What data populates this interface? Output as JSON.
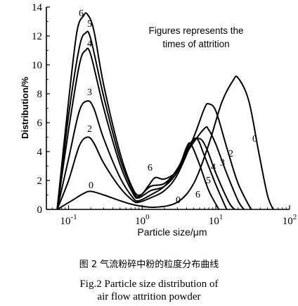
{
  "chart_data": {
    "type": "line",
    "xlabel": "Particle size/μm",
    "ylabel": "Distribution/%",
    "xscale": "log",
    "xlim": [
      0.05,
      100
    ],
    "ylim": [
      0,
      14
    ],
    "x_ticks": [
      "10-1",
      "100",
      "101",
      "102"
    ],
    "y_ticks": [
      "0",
      "2",
      "4",
      "6",
      "8",
      "10",
      "12",
      "14"
    ],
    "annotation": [
      "Figures represents the",
      "times of attrition"
    ],
    "series": [
      {
        "name": "0",
        "points": [
          [
            0.07,
            0
          ],
          [
            0.11,
            0.6
          ],
          [
            0.16,
            1.1
          ],
          [
            0.2,
            1.25
          ],
          [
            0.3,
            1.0
          ],
          [
            0.5,
            0.6
          ],
          [
            0.8,
            0.3
          ],
          [
            1.5,
            0.15
          ],
          [
            3,
            0.5
          ],
          [
            5,
            1.8
          ],
          [
            8,
            4.5
          ],
          [
            12,
            7.4
          ],
          [
            17,
            8.9
          ],
          [
            20,
            9.1
          ],
          [
            28,
            7.5
          ],
          [
            38,
            4.0
          ],
          [
            50,
            1.0
          ],
          [
            60,
            0
          ]
        ]
      },
      {
        "name": "2",
        "points": [
          [
            0.07,
            0
          ],
          [
            0.1,
            2.0
          ],
          [
            0.14,
            4.4
          ],
          [
            0.18,
            5.0
          ],
          [
            0.22,
            4.6
          ],
          [
            0.3,
            3.2
          ],
          [
            0.5,
            1.5
          ],
          [
            0.75,
            0.6
          ],
          [
            0.9,
            0.5
          ],
          [
            1.3,
            0.8
          ],
          [
            2,
            1.3
          ],
          [
            3,
            2.4
          ],
          [
            5,
            5.0
          ],
          [
            7,
            7.0
          ],
          [
            8,
            7.3
          ],
          [
            10,
            6.8
          ],
          [
            14,
            4.3
          ],
          [
            20,
            1.8
          ],
          [
            30,
            0
          ]
        ]
      },
      {
        "name": "3",
        "points": [
          [
            0.07,
            0
          ],
          [
            0.1,
            3.5
          ],
          [
            0.14,
            6.8
          ],
          [
            0.18,
            7.5
          ],
          [
            0.22,
            7.0
          ],
          [
            0.3,
            4.9
          ],
          [
            0.5,
            2.2
          ],
          [
            0.75,
            0.8
          ],
          [
            0.9,
            0.6
          ],
          [
            1.3,
            1.0
          ],
          [
            2,
            1.6
          ],
          [
            3,
            2.8
          ],
          [
            4.5,
            4.3
          ],
          [
            7,
            5.6
          ],
          [
            8,
            5.5
          ],
          [
            10,
            4.5
          ],
          [
            14,
            2.5
          ],
          [
            20,
            0.6
          ],
          [
            24,
            0
          ]
        ]
      },
      {
        "name": "4",
        "points": [
          [
            0.07,
            0
          ],
          [
            0.1,
            5.5
          ],
          [
            0.14,
            10.0
          ],
          [
            0.17,
            11.0
          ],
          [
            0.2,
            10.7
          ],
          [
            0.3,
            7.0
          ],
          [
            0.5,
            3.1
          ],
          [
            0.75,
            1.1
          ],
          [
            0.9,
            0.8
          ],
          [
            1.3,
            1.3
          ],
          [
            2,
            1.6
          ],
          [
            3,
            2.6
          ],
          [
            4.5,
            4.5
          ],
          [
            6,
            4.9
          ],
          [
            7.5,
            4.2
          ],
          [
            10,
            2.5
          ],
          [
            15,
            0.5
          ],
          [
            18,
            0
          ]
        ]
      },
      {
        "name": "5",
        "points": [
          [
            0.07,
            0
          ],
          [
            0.1,
            6.5
          ],
          [
            0.14,
            11.2
          ],
          [
            0.17,
            12.2
          ],
          [
            0.2,
            11.8
          ],
          [
            0.3,
            7.8
          ],
          [
            0.5,
            3.5
          ],
          [
            0.75,
            1.3
          ],
          [
            0.9,
            0.9
          ],
          [
            1.3,
            1.6
          ],
          [
            2,
            1.8
          ],
          [
            3,
            2.8
          ],
          [
            4.3,
            4.4
          ],
          [
            5.5,
            4.9
          ],
          [
            7,
            3.7
          ],
          [
            10,
            1.7
          ],
          [
            14,
            0
          ]
        ]
      },
      {
        "name": "6",
        "points": [
          [
            0.07,
            0
          ],
          [
            0.1,
            7.5
          ],
          [
            0.13,
            12.3
          ],
          [
            0.16,
            13.4
          ],
          [
            0.18,
            13.5
          ],
          [
            0.22,
            12.4
          ],
          [
            0.3,
            8.6
          ],
          [
            0.5,
            3.9
          ],
          [
            0.75,
            1.4
          ],
          [
            0.95,
            1.0
          ],
          [
            1.2,
            1.6
          ],
          [
            1.5,
            2.2
          ],
          [
            2,
            2.1
          ],
          [
            3,
            2.7
          ],
          [
            4,
            4.3
          ],
          [
            4.6,
            4.5
          ],
          [
            6,
            3.1
          ],
          [
            8,
            1.3
          ],
          [
            11,
            0
          ]
        ]
      }
    ],
    "curve_labels": [
      "6",
      "5",
      "4",
      "3",
      "2",
      "0",
      "6",
      "0",
      "6",
      "5",
      "4",
      "3",
      "2",
      "0"
    ]
  },
  "caption": {
    "cn": "图 2   气流粉碎中粉的粒度分布曲线",
    "en_line1": "Fig.2   Particle size distribution of",
    "en_line2": "air flow attrition powder"
  },
  "colors": {
    "axis": "#000000",
    "curve": "#000000",
    "background": "#ffffff"
  }
}
